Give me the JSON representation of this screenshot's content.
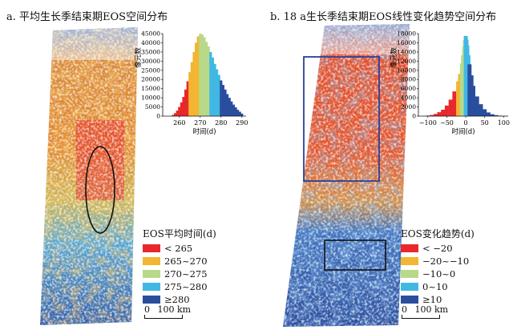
{
  "panel_a": {
    "title": "a. 平均生长季结束期EOS空间分布",
    "legend_title": "EOS平均时间(d)",
    "legend": [
      {
        "label": "< 265",
        "color": "#e8282b"
      },
      {
        "label": "265~270",
        "color": "#f2b632"
      },
      {
        "label": "270~275",
        "color": "#b9d98a"
      },
      {
        "label": "275~280",
        "color": "#41b8e4"
      },
      {
        "label": "≥280",
        "color": "#2a4e9e"
      }
    ],
    "scale_zero": "0",
    "scale_label": "100 km",
    "hist": {
      "type": "bar",
      "ylabel": "像元数",
      "xlabel": "时间(d)",
      "xticks": [
        "260",
        "270",
        "280",
        "290"
      ],
      "yticks": [
        "0",
        "5000",
        "10000",
        "15000",
        "20000",
        "25000",
        "30000",
        "35000",
        "40000",
        "45000"
      ],
      "xlim": [
        252,
        292
      ],
      "ylim": [
        0,
        45000
      ]
    }
  },
  "panel_b": {
    "title": "b. 18 a生长季结束期EOS线性变化趋势空间分布",
    "legend_title": "EOS变化趋势(d)",
    "legend": [
      {
        "label": "< −20",
        "color": "#e8282b"
      },
      {
        "label": "−20~−10",
        "color": "#f2b632"
      },
      {
        "label": "−10~0",
        "color": "#b9d98a"
      },
      {
        "label": "0~10",
        "color": "#41b8e4"
      },
      {
        "label": "≥10",
        "color": "#2a4e9e"
      }
    ],
    "scale_zero": "0",
    "scale_label": "100 km",
    "hist": {
      "type": "bar",
      "ylabel": "像元数",
      "xlabel": "时间(d)",
      "xticks": [
        "−100",
        "−50",
        "0",
        "50",
        "100"
      ],
      "yticks": [
        "0",
        "2000",
        "4000",
        "6000",
        "8000",
        "10000",
        "12000",
        "14000",
        "16000",
        "18000"
      ],
      "xlim": [
        -125,
        112
      ],
      "ylim": [
        0,
        18000
      ]
    }
  },
  "chart_data": [
    {
      "type": "bar",
      "xlabel": "时间(d)",
      "ylabel": "像元数",
      "xlim": [
        252,
        292
      ],
      "ylim": [
        0,
        45000
      ],
      "x": [
        257,
        258,
        259,
        260,
        261,
        262,
        263,
        264,
        265,
        266,
        267,
        268,
        269,
        270,
        271,
        272,
        273,
        274,
        275,
        276,
        277,
        278,
        279,
        280,
        281,
        282,
        283,
        284,
        285,
        286,
        287,
        288,
        289,
        290
      ],
      "values": [
        700,
        1600,
        3000,
        5000,
        7500,
        10500,
        14500,
        19000,
        24000,
        29500,
        35000,
        40000,
        43500,
        45000,
        44500,
        43000,
        40500,
        38000,
        35000,
        32000,
        28500,
        25500,
        22500,
        19500,
        17000,
        14500,
        12000,
        10000,
        8000,
        6300,
        4800,
        3500,
        2400,
        1400
      ]
    },
    {
      "type": "bar",
      "xlabel": "时间(d)",
      "ylabel": "像元数",
      "xlim": [
        -125,
        112
      ],
      "ylim": [
        0,
        18000
      ],
      "x": [
        -110,
        -100,
        -90,
        -80,
        -70,
        -60,
        -50,
        -40,
        -30,
        -20,
        -15,
        -10,
        -7,
        -4,
        -2,
        0,
        2,
        4,
        7,
        10,
        15,
        20,
        30,
        40,
        50,
        60,
        70,
        80,
        90,
        100
      ],
      "values": [
        50,
        120,
        250,
        480,
        850,
        1400,
        2300,
        3600,
        5400,
        7600,
        9200,
        11500,
        13300,
        15200,
        16600,
        17500,
        16700,
        15400,
        13300,
        11300,
        8900,
        6600,
        4300,
        2600,
        1500,
        800,
        420,
        220,
        110,
        50
      ]
    }
  ]
}
